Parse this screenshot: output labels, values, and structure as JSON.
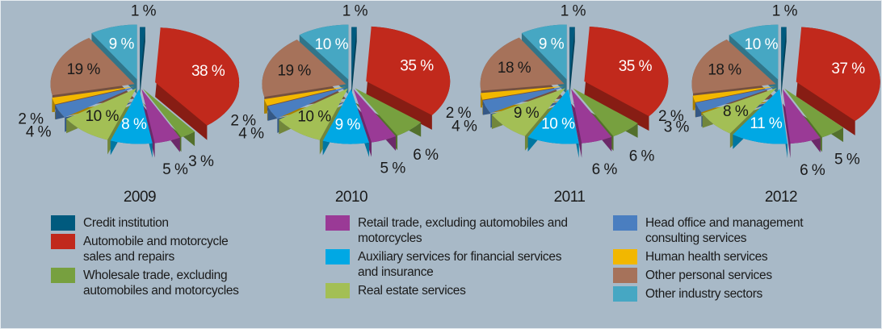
{
  "chart_data": {
    "type": "pie",
    "categories": [
      "Credit institution",
      "Automobile and motorcycle sales and repairs",
      "Wholesale trade, excluding automobiles and motorcycles",
      "Retail trade, excluding automobiles and motorcycles",
      "Auxiliary services for financial services and insurance",
      "Real estate services",
      "Head office and management consulting services",
      "Human health services",
      "Other personal services",
      "Other industry sectors"
    ],
    "colors": [
      "#005a7e",
      "#c1291c",
      "#77a03f",
      "#9a3a96",
      "#00a8e4",
      "#a3bf55",
      "#4a7ec0",
      "#f2b700",
      "#a6725a",
      "#46a7c3"
    ],
    "series": [
      {
        "name": "2009",
        "values": [
          1,
          38,
          3,
          5,
          8,
          10,
          4,
          2,
          19,
          9
        ],
        "value_labels": [
          "1 %",
          "38 %",
          "3 %",
          "5 %",
          "8 %",
          "10 %",
          "4 %",
          "2 %",
          "19 %",
          "9 %"
        ]
      },
      {
        "name": "2010",
        "values": [
          1,
          35,
          6,
          5,
          9,
          10,
          4,
          2,
          19,
          10
        ],
        "value_labels": [
          "1 %",
          "35 %",
          "6 %",
          "5 %",
          "9 %",
          "10 %",
          "4 %",
          "2 %",
          "19 %",
          "10 %"
        ]
      },
      {
        "name": "2011",
        "values": [
          1,
          35,
          6,
          6,
          10,
          9,
          4,
          2,
          18,
          9
        ],
        "value_labels": [
          "1 %",
          "35 %",
          "6 %",
          "6 %",
          "10 %",
          "9 %",
          "4 %",
          "2 %",
          "18 %",
          "9 %"
        ]
      },
      {
        "name": "2012",
        "values": [
          1,
          37,
          5,
          6,
          11,
          8,
          3,
          2,
          18,
          10
        ],
        "value_labels": [
          "1 %",
          "37 %",
          "5 %",
          "6 %",
          "11 %",
          "8 %",
          "3 %",
          "2 %",
          "18 %",
          "10 %"
        ]
      }
    ]
  }
}
